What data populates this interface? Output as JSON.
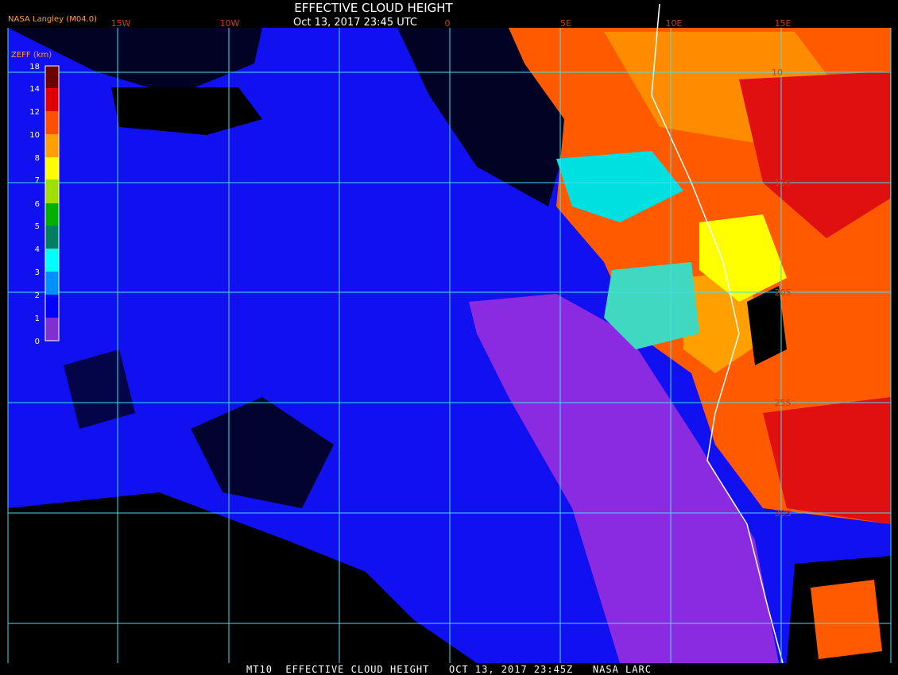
{
  "header": {
    "title": "EFFECTIVE CLOUD HEIGHT",
    "subtitle": "Oct 13, 2017 23:45 UTC",
    "source": "NASA Langley (M04.0)"
  },
  "legend": {
    "title": "ZEFF (km)",
    "labels": [
      "18",
      "14",
      "12",
      "10",
      "8",
      "7",
      "6",
      "5",
      "4",
      "3",
      "2",
      "1",
      "0"
    ]
  },
  "grid": {
    "longitude_labels": [
      "15W",
      "10W",
      "0",
      "5E",
      "10E",
      "15E"
    ],
    "latitude_labels": [
      "10",
      "15S",
      "20S",
      "25S",
      "30S"
    ]
  },
  "footer": {
    "text": "MT10  EFFECTIVE CLOUD HEIGHT   OCT 13, 2017 23:45Z   NASA LARC"
  }
}
